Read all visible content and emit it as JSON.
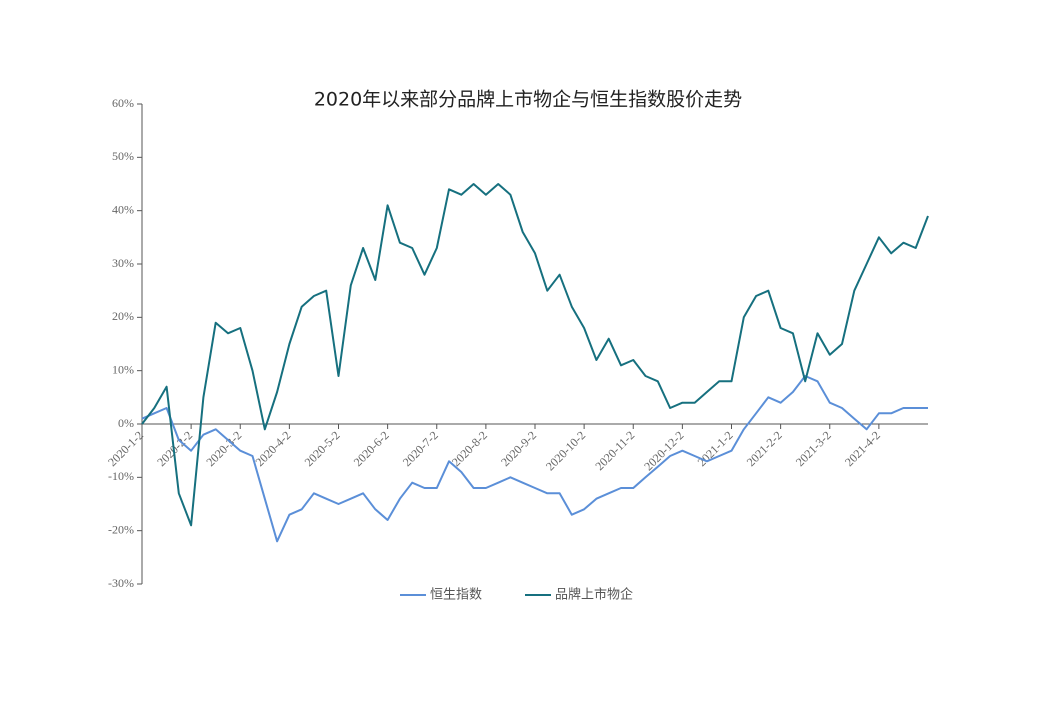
{
  "chart_data": {
    "type": "line",
    "title": "2020年以来部分品牌上市物企与恒生指数股价走势",
    "categories": [
      "2020-1-2",
      null,
      null,
      null,
      "2020-2-2",
      null,
      null,
      null,
      "2020-3-2",
      null,
      null,
      null,
      "2020-4-2",
      null,
      null,
      null,
      "2020-5-2",
      null,
      null,
      null,
      "2020-6-2",
      null,
      null,
      null,
      "2020-7-2",
      null,
      null,
      null,
      "2020-8-2",
      null,
      null,
      null,
      "2020-9-2",
      null,
      null,
      null,
      "2020-10-2",
      null,
      null,
      null,
      "2020-11-2",
      null,
      null,
      null,
      "2020-12-2",
      null,
      null,
      null,
      "2021-1-2",
      null,
      null,
      null,
      "2021-2-2",
      null,
      null,
      null,
      "2021-3-2",
      null,
      null,
      null,
      "2021-4-2",
      null,
      null,
      null,
      null
    ],
    "series": [
      {
        "name": "恒生指数",
        "color": "#5b8fd8",
        "values": [
          1,
          2,
          3,
          -3,
          -5,
          -2,
          -1,
          -3,
          -5,
          -6,
          -14,
          -22,
          -17,
          -16,
          -13,
          -14,
          -15,
          -14,
          -13,
          -16,
          -18,
          -14,
          -11,
          -12,
          -12,
          -7,
          -9,
          -12,
          -12,
          -11,
          -10,
          -11,
          -12,
          -13,
          -13,
          -17,
          -16,
          -14,
          -13,
          -12,
          -12,
          -10,
          -8,
          -6,
          -5,
          -6,
          -7,
          -6,
          -5,
          -1,
          2,
          5,
          4,
          6,
          9,
          8,
          4,
          3,
          1,
          -1,
          2,
          2,
          3,
          3,
          3
        ]
      },
      {
        "name": "品牌上市物企",
        "color": "#16707f",
        "values": [
          0,
          3,
          7,
          -13,
          -19,
          5,
          19,
          17,
          18,
          10,
          -1,
          6,
          15,
          22,
          24,
          25,
          9,
          26,
          33,
          27,
          41,
          34,
          33,
          28,
          33,
          44,
          43,
          45,
          43,
          45,
          43,
          36,
          32,
          25,
          28,
          22,
          18,
          12,
          16,
          11,
          12,
          9,
          8,
          3,
          4,
          4,
          6,
          8,
          8,
          20,
          24,
          25,
          18,
          17,
          8,
          17,
          13,
          15,
          25,
          30,
          35,
          32,
          34,
          33,
          39
        ]
      }
    ],
    "ylim": [
      -30,
      60
    ],
    "yticks": [
      {
        "value": -30,
        "label": "-30%"
      },
      {
        "value": -20,
        "label": "-20%"
      },
      {
        "value": -10,
        "label": "-10%"
      },
      {
        "value": 0,
        "label": "0%"
      },
      {
        "value": 10,
        "label": "10%"
      },
      {
        "value": 20,
        "label": "20%"
      },
      {
        "value": 30,
        "label": "30%"
      },
      {
        "value": 40,
        "label": "40%"
      },
      {
        "value": 50,
        "label": "50%"
      },
      {
        "value": 60,
        "label": "60%"
      }
    ],
    "legend": "bottom"
  }
}
